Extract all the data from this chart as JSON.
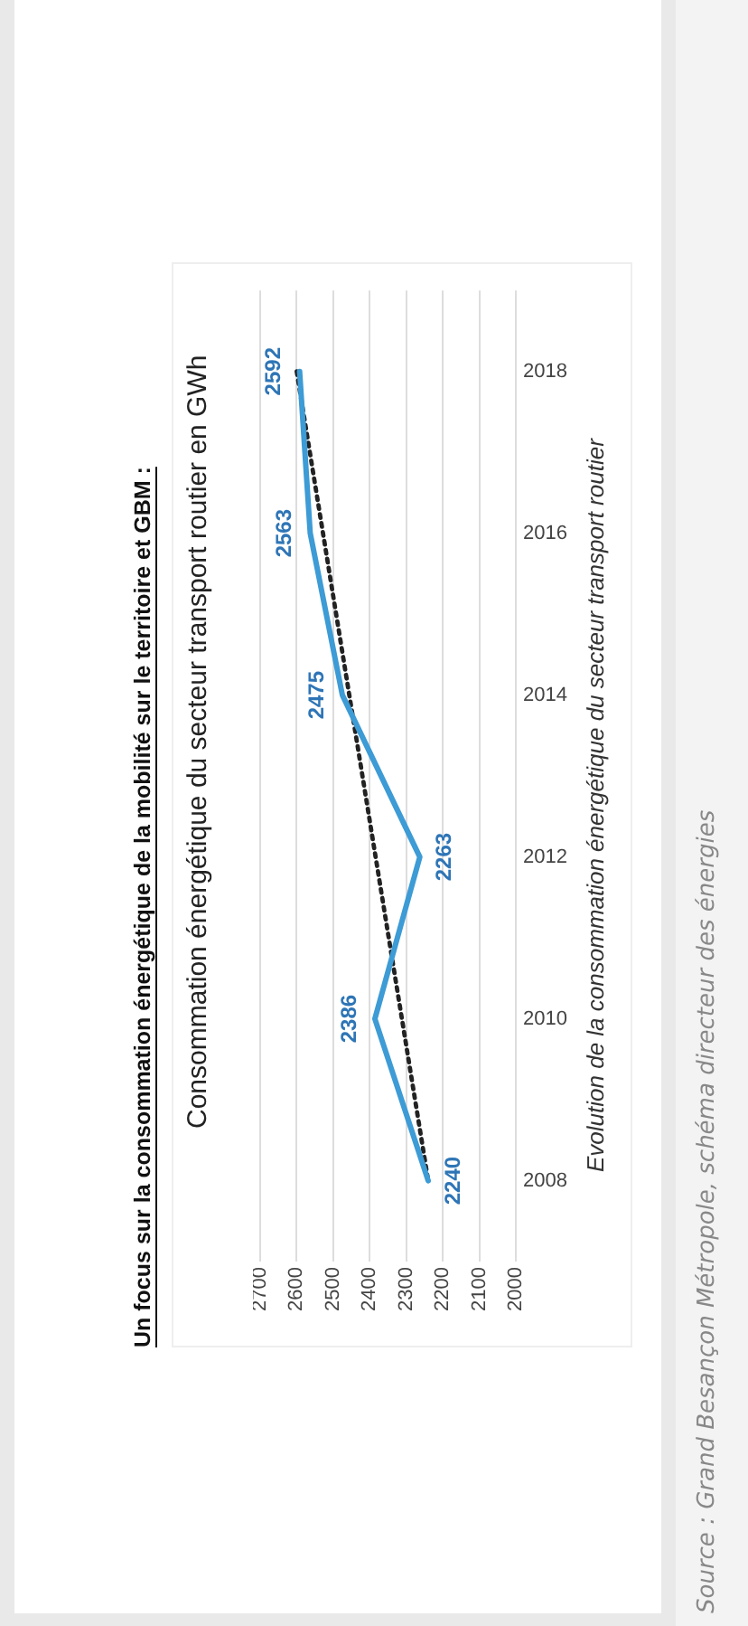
{
  "chart_data": {
    "type": "line",
    "orientation": "horizontal",
    "title": "Un focus sur la consommation énergétique de la mobilité sur le territoire et GBM :",
    "subtitle": "Consommation énergétique du secteur transport routier en GWh",
    "categories": [
      "2018",
      "2016",
      "2014",
      "2012",
      "2010",
      "2008"
    ],
    "series": [
      {
        "color": "#3d9bd5",
        "values": [
          2592,
          2563,
          2475,
          2263,
          2386,
          2240
        ],
        "value_labels": [
          "2592",
          "2563",
          "2475",
          "2263",
          "2386",
          "2240"
        ],
        "marker": "none",
        "line_style": "solid"
      },
      {
        "type": "line",
        "color": "#222222",
        "values": [
          2600,
          null,
          null,
          null,
          null,
          2240
        ],
        "marker": "none",
        "line_style": "dotted"
      }
    ],
    "xlim": [
      2700,
      2000
    ],
    "xticks": [
      2700,
      2600,
      2500,
      2400,
      2300,
      2200,
      2100,
      2000
    ],
    "grid": "x",
    "legend": false,
    "annotations": [
      "Evolution de la consommation énergétique du secteur transport routier",
      "Source : Grand Besançon Métropole, schéma directeur des énergies"
    ]
  }
}
